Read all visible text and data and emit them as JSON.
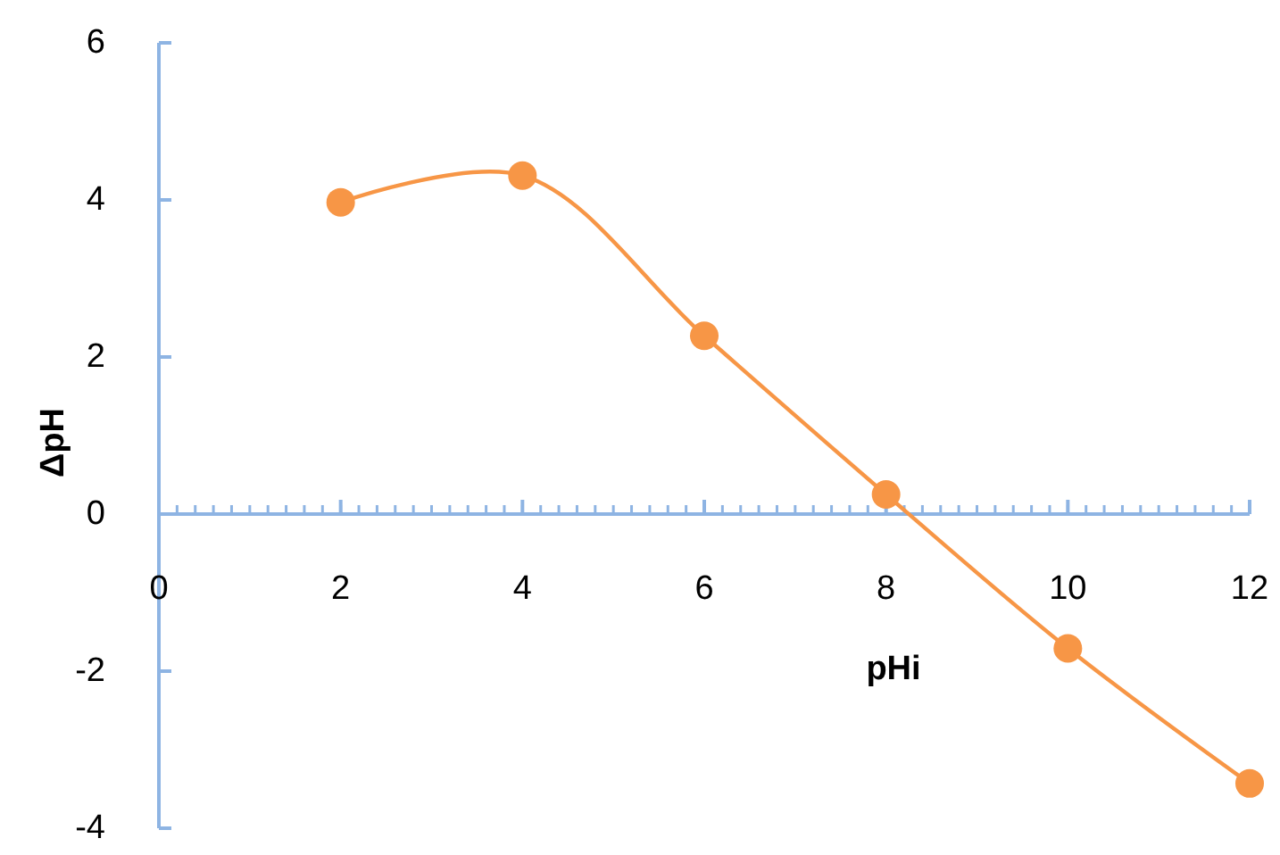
{
  "chart_data": {
    "type": "line",
    "xlabel": "pHi",
    "ylabel": "ΔpH",
    "x": [
      2,
      4,
      6,
      8,
      10,
      12
    ],
    "series": [
      {
        "color": "#f79646",
        "values": [
          3.97,
          4.31,
          2.27,
          0.25,
          -1.71,
          -3.43
        ]
      }
    ],
    "xlim": [
      0,
      12
    ],
    "xticks": [
      0,
      2,
      4,
      6,
      8,
      10,
      12
    ],
    "ylim": [
      -4,
      6
    ],
    "yticks": [
      -4,
      -2,
      0,
      2,
      4,
      6
    ],
    "marker": "circle",
    "line_style": "solid",
    "grid": false
  }
}
